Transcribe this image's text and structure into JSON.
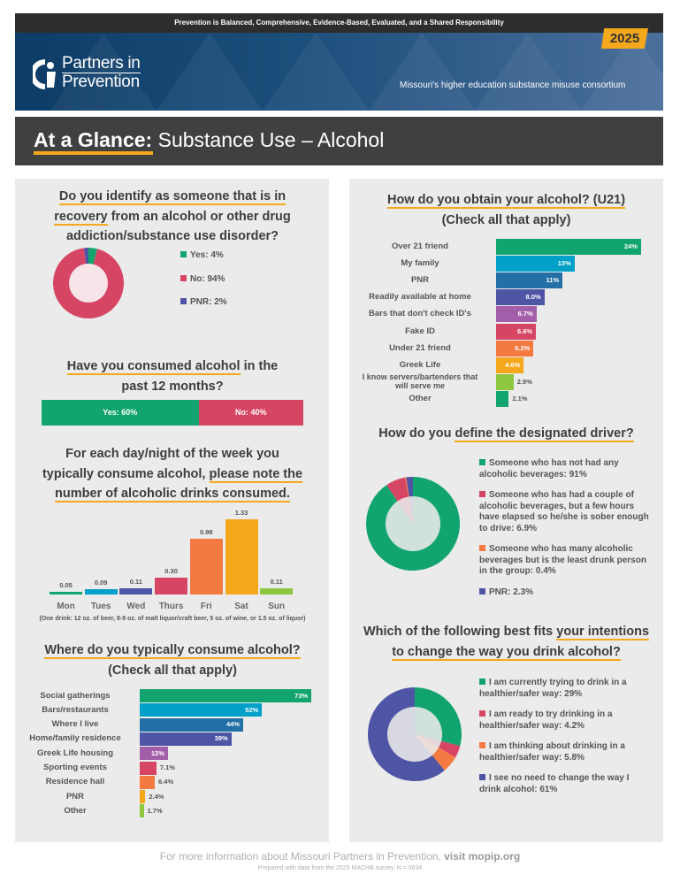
{
  "header": {
    "tagline_top": "Prevention is Balanced, Comprehensive, Evidence-Based, Evaluated, and a Shared Responsibility",
    "year": "2025",
    "logo_line1": "Partners in",
    "logo_line2": "Prevention",
    "subtitle": "Missouri's higher education substance misuse consortium",
    "title_bold": "At a Glance:",
    "title_rest": " Substance Use – Alcohol"
  },
  "colors": {
    "green": "#12a46f",
    "cyan": "#00a0c8",
    "blue": "#2270a6",
    "indigo": "#4f55a5",
    "purple": "#a35ea9",
    "pink": "#d74565",
    "orange": "#f47a42",
    "yellow": "#f5a81c",
    "lime": "#8dc63f"
  },
  "q1": {
    "t1": "Do you identify as someone that is in",
    "t2a": "recovery",
    "t2b": " from an alcohol or other drug",
    "t3": "addiction/substance use disorder?"
  },
  "q2": {
    "t1a": "Have you consumed alcohol",
    "t1b": " in the",
    "t2": "past 12 months?"
  },
  "q3": {
    "t1": "For each day/night of the week you",
    "t2a": "typically consume alcohol, ",
    "t2b": "please note the",
    "t3": "number of alcoholic drinks consumed.",
    "note": "(One drink: 12 oz. of beer, 8-9 oz. of malt liquor/craft beer, 5 oz. of wine, or 1.5 oz. of liquor)"
  },
  "q4": {
    "t1": "Where do you typically consume alcohol?",
    "t2": "(Check all that apply)"
  },
  "q5": {
    "t1": "How do you obtain your alcohol? (U21)",
    "t2": "(Check all that apply)"
  },
  "q6": {
    "t1a": "How do you ",
    "t1b": "define the designated driver?"
  },
  "q7": {
    "t1a": "Which of the following best fits ",
    "t1b": "your intentions",
    "t2": "to change the way you drink alcohol?"
  },
  "footer": {
    "line1a": "For more information about Missouri Partners in Prevention, ",
    "line1b": "visit mopip.org",
    "line2": "Prepared with data from the 2025 MACHB survey. N = 5634"
  },
  "chart_data": [
    {
      "id": "recovery",
      "type": "pie",
      "title": "Do you identify as someone that is in recovery from an alcohol or other drug addiction/substance use disorder?",
      "slices": [
        {
          "label": "Yes: 4%",
          "value": 4,
          "color": "#12a46f"
        },
        {
          "label": "No: 94%",
          "value": 94,
          "color": "#d74565"
        },
        {
          "label": "PNR: 2%",
          "value": 2,
          "color": "#4f55a5"
        }
      ]
    },
    {
      "id": "past12",
      "type": "bar",
      "title": "Have you consumed alcohol in the past 12 months?",
      "stacked": true,
      "segments": [
        {
          "label": "Yes: 60%",
          "value": 60,
          "color": "#12a46f"
        },
        {
          "label": "No: 40%",
          "value": 40,
          "color": "#d74565"
        }
      ]
    },
    {
      "id": "weekday",
      "type": "bar",
      "title": "Number of alcoholic drinks consumed by day",
      "categories": [
        "Mon",
        "Tues",
        "Wed",
        "Thurs",
        "Fri",
        "Sat",
        "Sun"
      ],
      "values": [
        0.05,
        0.09,
        0.11,
        0.3,
        0.98,
        1.33,
        0.11
      ],
      "labels": [
        "0.05",
        "0.09",
        "0.11",
        "0.30",
        "0.98",
        "1.33",
        "0.11"
      ],
      "colors": [
        "#12a46f",
        "#00a0c8",
        "#4f55a5",
        "#d74565",
        "#f47a42",
        "#f5a81c",
        "#8dc63f"
      ],
      "ylim": [
        0,
        1.33
      ]
    },
    {
      "id": "where",
      "type": "bar",
      "orientation": "horizontal",
      "title": "Where do you typically consume alcohol?",
      "categories": [
        "Social gatherings",
        "Bars/restaurants",
        "Where I live",
        "Home/family residence",
        "Greek Life housing",
        "Sporting events",
        "Residence hall",
        "PNR",
        "Other"
      ],
      "values": [
        73,
        52,
        44,
        39,
        12,
        7.1,
        6.4,
        2.4,
        1.7
      ],
      "labels": [
        "73%",
        "52%",
        "44%",
        "39%",
        "12%",
        "7.1%",
        "6.4%",
        "2.4%",
        "1.7%"
      ],
      "colors": [
        "#12a46f",
        "#00a0c8",
        "#2270a6",
        "#4f55a5",
        "#a35ea9",
        "#d74565",
        "#f47a42",
        "#f5a81c",
        "#8dc63f"
      ]
    },
    {
      "id": "obtain",
      "type": "bar",
      "orientation": "horizontal",
      "title": "How do you obtain your alcohol? (U21)",
      "categories": [
        "Over 21 friend",
        "My family",
        "PNR",
        "Readily available at home",
        "Bars that don't check ID's",
        "Fake ID",
        "Under 21 friend",
        "Greek Life",
        "I know servers/bartenders that will serve me",
        "Other"
      ],
      "values": [
        24,
        13,
        11,
        8.0,
        6.7,
        6.6,
        6.2,
        4.6,
        2.9,
        2.1
      ],
      "labels": [
        "24%",
        "13%",
        "11%",
        "8.0%",
        "6.7%",
        "6.6%",
        "6.2%",
        "4.6%",
        "2.9%",
        "2.1%"
      ],
      "colors": [
        "#12a46f",
        "#00a0c8",
        "#2270a6",
        "#4f55a5",
        "#a35ea9",
        "#d74565",
        "#f47a42",
        "#f5a81c",
        "#8dc63f",
        "#12a46f"
      ]
    },
    {
      "id": "dd",
      "type": "pie",
      "title": "How do you define the designated driver?",
      "slices": [
        {
          "label": "Someone who has not had any alcoholic beverages: 91%",
          "value": 91,
          "color": "#12a46f"
        },
        {
          "label": "Someone who has had a couple of alcoholic beverages, but a few hours have elapsed so he/she is sober enough to drive: 6.9%",
          "value": 6.9,
          "color": "#d74565"
        },
        {
          "label": "Someone who has many alcoholic beverages but is the least drunk person in the group: 0.4%",
          "value": 0.4,
          "color": "#f47a42"
        },
        {
          "label": "PNR: 2.3%",
          "value": 2.3,
          "color": "#4f55a5"
        }
      ]
    },
    {
      "id": "intent",
      "type": "pie",
      "title": "Which of the following best fits your intentions to change the way you drink alcohol?",
      "slices": [
        {
          "label": "I am currently trying to drink in a healthier/safer way: 29%",
          "value": 29,
          "color": "#12a46f"
        },
        {
          "label": "I am ready to try drinking in a healthier/safer way: 4.2%",
          "value": 4.2,
          "color": "#d74565"
        },
        {
          "label": "I am thinking about drinking in a healthier/safer way: 5.8%",
          "value": 5.8,
          "color": "#f47a42"
        },
        {
          "label": "I see no need to change the way I drink alcohol: 61%",
          "value": 61,
          "color": "#4f55a5"
        }
      ]
    }
  ]
}
